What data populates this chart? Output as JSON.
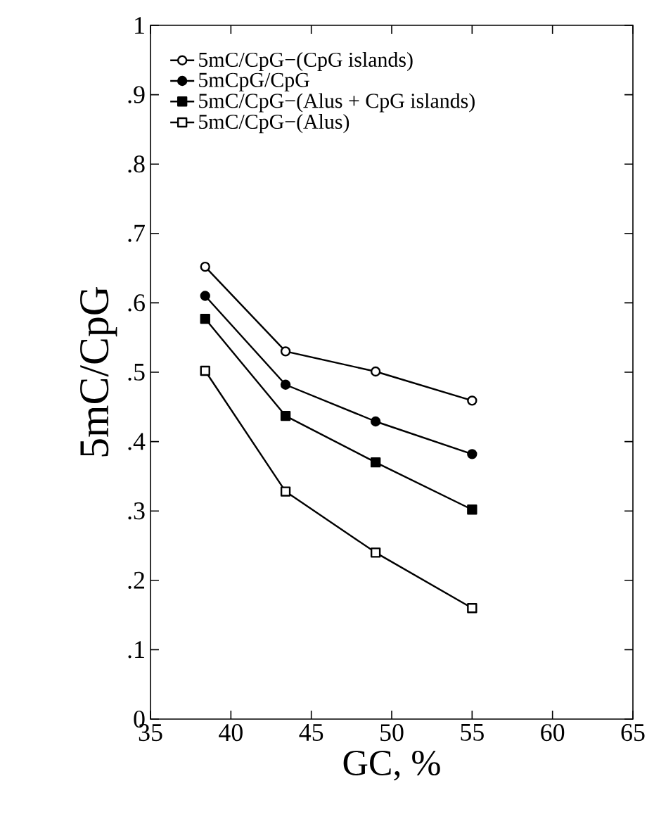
{
  "chart_data": {
    "type": "line",
    "xlabel": "GC, %",
    "ylabel": "5mC/CpG",
    "xlim": [
      35,
      65
    ],
    "xticks": [
      35,
      40,
      45,
      50,
      55,
      60,
      65
    ],
    "ylim": [
      0,
      1
    ],
    "yticks": [
      0,
      {
        "value": 0.1,
        "label": ".1"
      },
      {
        "value": 0.2,
        "label": ".2"
      },
      {
        "value": 0.3,
        "label": ".3"
      },
      {
        "value": 0.4,
        "label": ".4"
      },
      {
        "value": 0.5,
        "label": ".5"
      },
      {
        "value": 0.6,
        "label": ".6"
      },
      {
        "value": 0.7,
        "label": ".7"
      },
      {
        "value": 0.8,
        "label": ".8"
      },
      {
        "value": 0.9,
        "label": ".9"
      },
      1
    ],
    "x": [
      38.4,
      43.4,
      49,
      55
    ],
    "legend": "top left",
    "grid": false,
    "line_style": "solid",
    "series": [
      {
        "name": "5mC/CpG−(CpG islands)",
        "color": "#000000",
        "marker": "circle",
        "values": [
          0.652,
          0.53,
          0.501,
          0.459
        ]
      },
      {
        "name": "5mCpG/CpG",
        "color": "#000000",
        "marker": "circle",
        "values": [
          0.61,
          0.482,
          0.429,
          0.382
        ]
      },
      {
        "name": "5mC/CpG−(Alus + CpG islands)",
        "color": "#000000",
        "marker": "square",
        "values": [
          0.577,
          0.437,
          0.37,
          0.302
        ]
      },
      {
        "name": "5mC/CpG−(Alus)",
        "color": "#000000",
        "marker": "square",
        "values": [
          0.502,
          0.328,
          0.24,
          0.16
        ]
      }
    ]
  }
}
